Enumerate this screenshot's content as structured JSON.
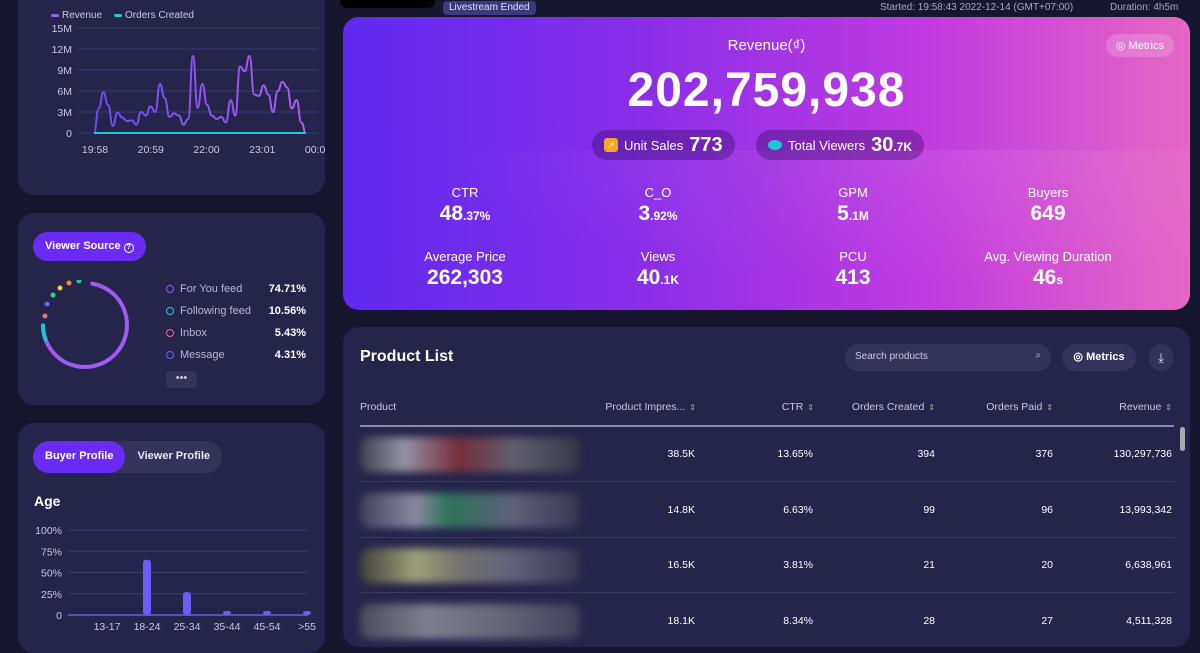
{
  "header": {
    "badge": "Livestream Ended",
    "started": "Started: 19:58:43 2022-12-14 (GMT+07:00)",
    "duration": "Duration: 4h5m"
  },
  "trend": {
    "legend": [
      "Revenue",
      "Orders Created"
    ],
    "colors": {
      "revenue": "#9b5cf5",
      "orders": "#1fc6d6"
    }
  },
  "chart_data": [
    {
      "type": "line",
      "title": "",
      "legend": [
        "Revenue",
        "Orders Created"
      ],
      "x_ticks": [
        "19:58",
        "20:59",
        "22:00",
        "23:01",
        "00:03"
      ],
      "y_ticks": [
        "15M",
        "12M",
        "9M",
        "6M",
        "3M",
        "0"
      ],
      "ylim": [
        0,
        15000000
      ],
      "series": [
        {
          "name": "Revenue",
          "values": [
            0,
            3.5,
            5.8,
            4,
            1,
            2.9,
            2.2,
            1.7,
            1.8,
            1.2,
            3,
            2.5,
            3.8,
            3,
            7,
            5,
            2.3,
            2.8,
            2.5,
            1.2,
            2,
            11,
            3.6,
            7,
            4,
            2.5,
            2,
            2.3,
            1.5,
            4.7,
            2.5,
            9.5,
            8.8,
            11,
            5.5,
            5.3,
            6.8,
            5.5,
            3,
            6,
            7.3,
            6.5,
            3.5,
            4.7,
            1.5,
            0
          ]
        },
        {
          "name": "Orders Created",
          "values": [
            0,
            0,
            0,
            0,
            0,
            0,
            0,
            0,
            0,
            0,
            0,
            0,
            0,
            0,
            0,
            0,
            0,
            0,
            0,
            0,
            0,
            0,
            0,
            0,
            0,
            0,
            0,
            0,
            0,
            0,
            0,
            0,
            0,
            0,
            0,
            0,
            0,
            0,
            0,
            0,
            0,
            0,
            0,
            0,
            0,
            0
          ]
        }
      ]
    },
    {
      "type": "bar",
      "title": "Age",
      "categories": [
        "13-17",
        "18-24",
        "25-34",
        "35-44",
        "45-54",
        ">55"
      ],
      "values": [
        0,
        65,
        27,
        2,
        2,
        2
      ],
      "y_ticks": [
        "100%",
        "75%",
        "50%",
        "25%",
        "0"
      ],
      "ylim": [
        0,
        100
      ]
    }
  ],
  "viewer_source": {
    "title": "Viewer Source",
    "help": "?",
    "items": [
      {
        "label": "For You feed",
        "value": "74.71%",
        "color": "#a259f0"
      },
      {
        "label": "Following feed",
        "value": "10.56%",
        "color": "#1fc6d6"
      },
      {
        "label": "Inbox",
        "value": "5.43%",
        "color": "#f06a8a"
      },
      {
        "label": "Message",
        "value": "4.31%",
        "color": "#5a6cf5"
      }
    ],
    "more": "•••"
  },
  "profile": {
    "tabs": [
      "Buyer Profile",
      "Viewer Profile"
    ],
    "section": "Age"
  },
  "hero": {
    "title": "Revenue(₫)",
    "value": "202,759,938",
    "metrics_button": "Metrics",
    "unit_sales_label": "Unit Sales",
    "unit_sales": "773",
    "viewers_label": "Total Viewers",
    "viewers": "30",
    "viewers_suffix": ".7K",
    "metrics": [
      {
        "label": "CTR",
        "value": "48",
        "suffix": ".37%"
      },
      {
        "label": "C_O",
        "value": "3",
        "suffix": ".92%"
      },
      {
        "label": "GPM",
        "value": "5",
        "suffix": ".1M"
      },
      {
        "label": "Buyers",
        "value": "649",
        "suffix": ""
      },
      {
        "label": "Average Price",
        "value": "262,303",
        "suffix": ""
      },
      {
        "label": "Views",
        "value": "40",
        "suffix": ".1K"
      },
      {
        "label": "PCU",
        "value": "413",
        "suffix": ""
      },
      {
        "label": "Avg. Viewing Duration",
        "value": "46",
        "suffix": "s"
      }
    ]
  },
  "products": {
    "title": "Product List",
    "search_placeholder": "Search products",
    "metrics_button": "Metrics",
    "columns": [
      "Product",
      "Product Impres...",
      "CTR",
      "Orders Created",
      "Orders Paid",
      "Revenue"
    ],
    "rows": [
      [
        "38.5K",
        "13.65%",
        "394",
        "376",
        "130,297,736"
      ],
      [
        "14.8K",
        "6.63%",
        "99",
        "96",
        "13,993,342"
      ],
      [
        "16.5K",
        "3.81%",
        "21",
        "20",
        "6,638,961"
      ],
      [
        "18.1K",
        "8.34%",
        "28",
        "27",
        "4,511,328"
      ]
    ]
  }
}
